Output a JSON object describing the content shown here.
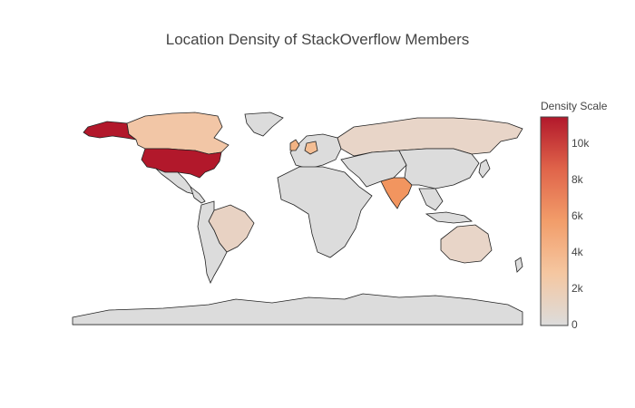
{
  "chart_data": {
    "type": "choropleth",
    "title": "Location Density of StackOverflow Members",
    "colorbar": {
      "title": "Density Scale",
      "min": 0,
      "max": 11400,
      "ticks": [
        "0",
        "2k",
        "4k",
        "6k",
        "8k",
        "10k"
      ],
      "colorscale": [
        "#dcdcdc",
        "#f5c7a1",
        "#f29d6a",
        "#e0644a",
        "#b2182b"
      ]
    },
    "regions": [
      {
        "name": "United States",
        "value": 11400
      },
      {
        "name": "India",
        "value": 5200
      },
      {
        "name": "Canada",
        "value": 1500
      },
      {
        "name": "United Kingdom",
        "value": 2500
      },
      {
        "name": "Germany",
        "value": 2000
      },
      {
        "name": "Russia",
        "value": 600
      },
      {
        "name": "Brazil",
        "value": 900
      },
      {
        "name": "Australia",
        "value": 800
      },
      {
        "name": "Alaska",
        "value": 11400
      }
    ]
  }
}
